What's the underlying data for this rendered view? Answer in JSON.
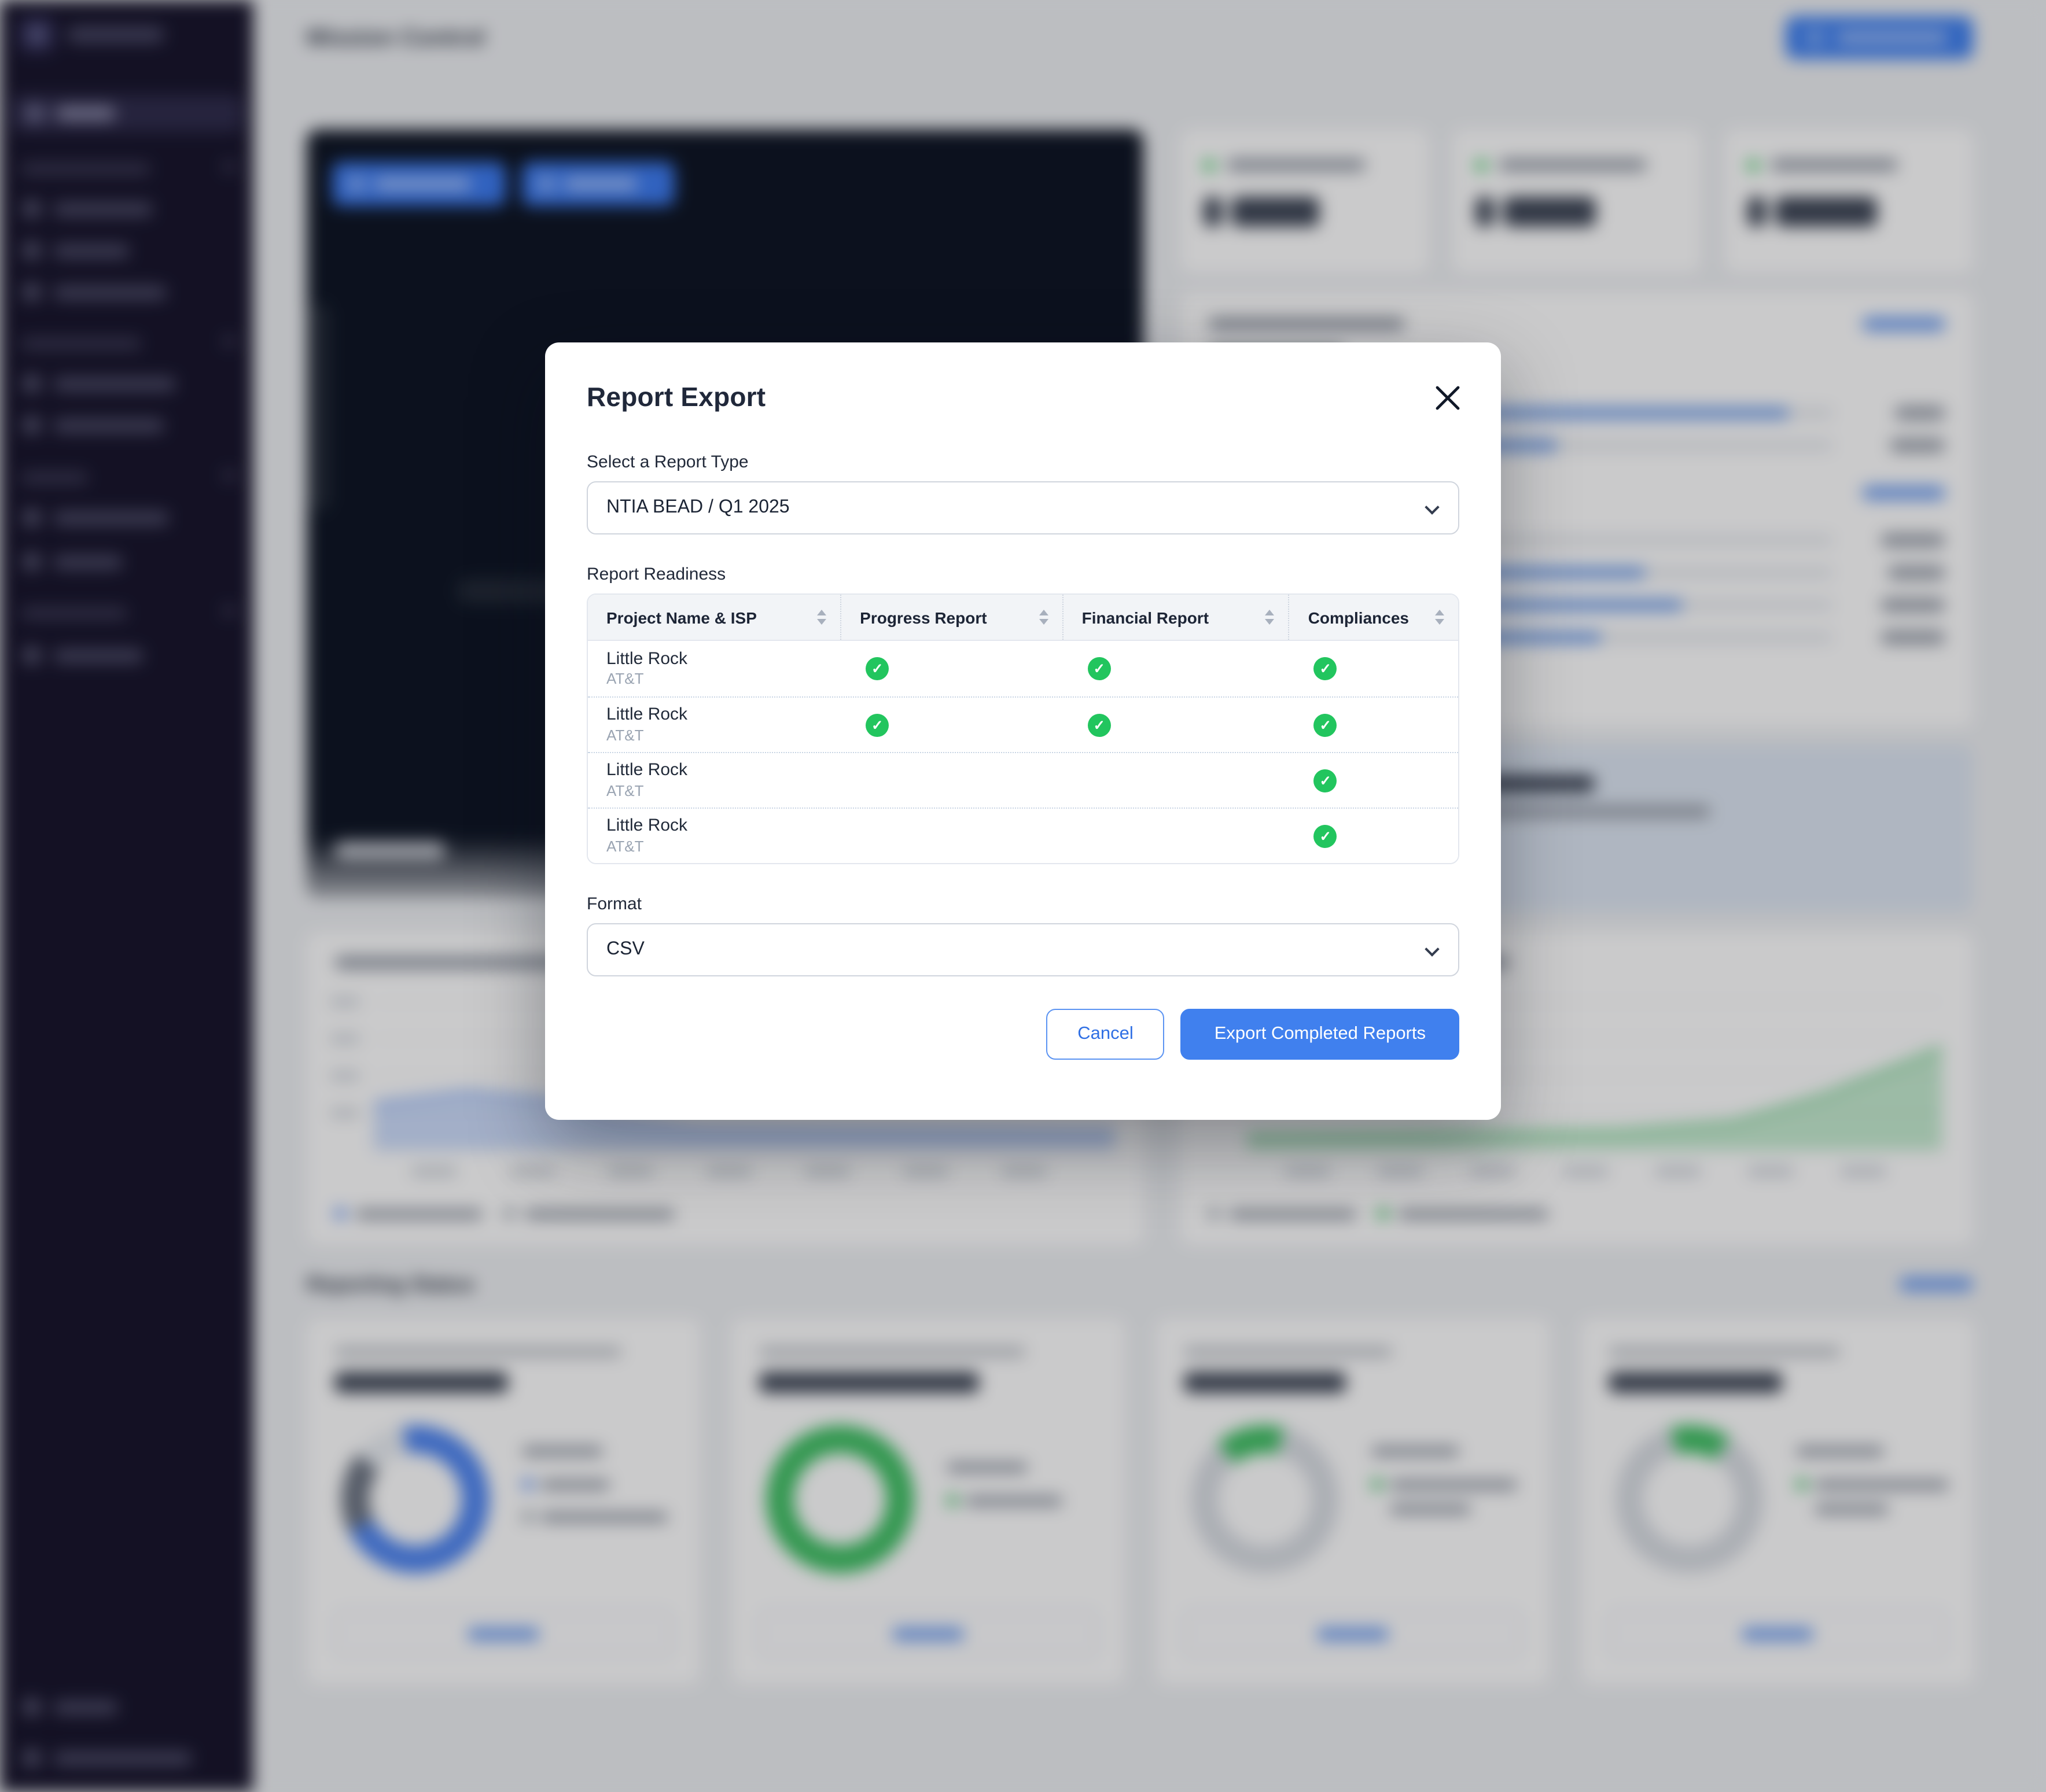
{
  "colors": {
    "accent": "#3e7eef",
    "success": "#22c55e",
    "sidebar_bg": "#16132a"
  },
  "background": {
    "page_title": "Mission Control",
    "reporting_section_title": "Reporting Status"
  },
  "modal": {
    "title": "Report Export",
    "report_type_label": "Select a Report Type",
    "report_type_value": "NTIA BEAD / Q1 2025",
    "readiness_label": "Report Readiness",
    "table": {
      "columns": [
        "Project Name & ISP",
        "Progress Report",
        "Financial Report",
        "Compliances"
      ],
      "rows": [
        {
          "project": "Little Rock",
          "isp": "AT&T",
          "progress": true,
          "financial": true,
          "compliances": true
        },
        {
          "project": "Little Rock",
          "isp": "AT&T",
          "progress": true,
          "financial": true,
          "compliances": true
        },
        {
          "project": "Little Rock",
          "isp": "AT&T",
          "progress": false,
          "financial": false,
          "compliances": true
        },
        {
          "project": "Little Rock",
          "isp": "AT&T",
          "progress": false,
          "financial": false,
          "compliances": true
        }
      ]
    },
    "format_label": "Format",
    "format_value": "CSV",
    "cancel_label": "Cancel",
    "export_label": "Export Completed Reports"
  }
}
